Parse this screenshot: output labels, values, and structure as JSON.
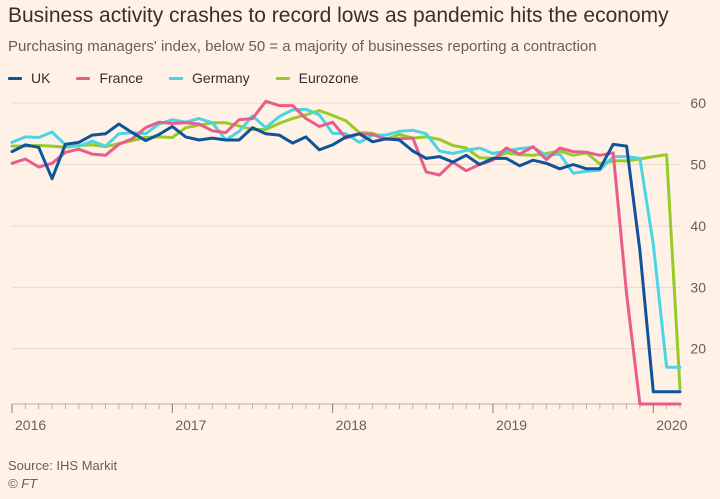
{
  "header": {
    "title": "Business activity crashes to record lows as pandemic hits the economy",
    "subtitle": "Purchasing managers' index, below 50 = a majority of businesses reporting a contraction"
  },
  "footer": {
    "source": "Source: IHS Markit",
    "credit": "© FT"
  },
  "chart_data": {
    "type": "line",
    "title": "Business activity crashes to record lows as pandemic hits the economy",
    "subtitle": "Purchasing managers' index, below 50 = a majority of businesses reporting a contraction",
    "xlabel": "",
    "ylabel": "",
    "x": [
      "2016-01",
      "2016-02",
      "2016-03",
      "2016-04",
      "2016-05",
      "2016-06",
      "2016-07",
      "2016-08",
      "2016-09",
      "2016-10",
      "2016-11",
      "2016-12",
      "2017-01",
      "2017-02",
      "2017-03",
      "2017-04",
      "2017-05",
      "2017-06",
      "2017-07",
      "2017-08",
      "2017-09",
      "2017-10",
      "2017-11",
      "2017-12",
      "2018-01",
      "2018-02",
      "2018-03",
      "2018-04",
      "2018-05",
      "2018-06",
      "2018-07",
      "2018-08",
      "2018-09",
      "2018-10",
      "2018-11",
      "2018-12",
      "2019-01",
      "2019-02",
      "2019-03",
      "2019-04",
      "2019-05",
      "2019-06",
      "2019-07",
      "2019-08",
      "2019-09",
      "2019-10",
      "2019-11",
      "2019-12",
      "2020-01",
      "2020-02",
      "2020-03"
    ],
    "x_ticks": [
      {
        "x": "2016-01",
        "label": "2016"
      },
      {
        "x": "2017-01",
        "label": "2017"
      },
      {
        "x": "2018-01",
        "label": "2018"
      },
      {
        "x": "2019-01",
        "label": "2019"
      },
      {
        "x": "2020-01",
        "label": "2020"
      }
    ],
    "ylim": [
      11,
      61
    ],
    "yticks": [
      20,
      30,
      40,
      50,
      60
    ],
    "y_axis_side": "right",
    "grid": true,
    "legend_position": "top-left",
    "series": [
      {
        "name": "UK",
        "color": "#0f5499",
        "values": [
          52.1,
          53.2,
          52.8,
          47.7,
          53.3,
          53.6,
          54.8,
          55.0,
          56.6,
          55.2,
          53.9,
          54.9,
          56.2,
          54.5,
          54.0,
          54.3,
          54.0,
          54.0,
          56.0,
          55.0,
          54.8,
          53.5,
          54.5,
          52.4,
          53.2,
          54.5,
          55.0,
          53.7,
          54.2,
          54.0,
          52.2,
          51.0,
          51.3,
          50.4,
          51.5,
          50.0,
          51.0,
          51.0,
          49.8,
          50.7,
          50.2,
          49.3,
          50.0,
          49.3,
          49.3,
          53.3,
          53.0,
          36.0,
          13.0,
          13.0,
          13.0
        ]
      },
      {
        "name": "France",
        "color": "#e95d8c",
        "values": [
          50.2,
          50.9,
          49.6,
          50.2,
          52.0,
          52.5,
          51.7,
          51.5,
          53.3,
          54.2,
          56.0,
          56.9,
          56.7,
          56.8,
          56.6,
          55.5,
          55.2,
          57.3,
          57.5,
          60.3,
          59.6,
          59.6,
          57.5,
          56.2,
          56.9,
          54.3,
          55.0,
          54.9,
          54.1,
          54.2,
          54.3,
          48.8,
          48.3,
          50.4,
          49.0,
          50.0,
          50.7,
          52.7,
          51.7,
          52.9,
          50.8,
          52.7,
          52.1,
          52.0,
          51.5,
          51.9,
          28.9,
          11.0,
          11.0,
          11.0,
          11.0
        ]
      },
      {
        "name": "Germany",
        "color": "#4bd5e3",
        "values": [
          53.6,
          54.5,
          54.4,
          55.3,
          53.2,
          53.0,
          53.8,
          53.0,
          55.0,
          55.2,
          55.0,
          56.6,
          57.3,
          56.9,
          57.5,
          56.8,
          54.0,
          55.4,
          57.9,
          56.0,
          57.8,
          58.9,
          59.0,
          58.1,
          55.1,
          55.0,
          53.6,
          54.8,
          54.8,
          55.4,
          55.6,
          55.0,
          52.2,
          51.8,
          52.3,
          52.7,
          51.8,
          52.2,
          52.6,
          52.8,
          51.5,
          51.7,
          48.6,
          48.9,
          49.1,
          51.3,
          51.3,
          51.0,
          37.0,
          17.0,
          17.0
        ]
      },
      {
        "name": "Eurozone",
        "color": "#96cc28",
        "values": [
          53.0,
          53.0,
          53.1,
          53.0,
          52.8,
          53.1,
          53.2,
          52.9,
          53.4,
          53.9,
          54.4,
          54.5,
          54.4,
          56.0,
          56.4,
          56.8,
          56.8,
          56.3,
          55.7,
          55.7,
          56.7,
          57.5,
          58.1,
          58.8,
          58.0,
          57.1,
          55.2,
          55.1,
          54.1,
          54.9,
          54.3,
          54.5,
          54.1,
          53.1,
          52.7,
          51.1,
          51.0,
          51.9,
          51.6,
          51.5,
          51.8,
          52.2,
          51.5,
          51.9,
          50.1,
          50.6,
          50.6,
          50.9,
          51.3,
          51.6,
          13.5
        ]
      }
    ]
  }
}
